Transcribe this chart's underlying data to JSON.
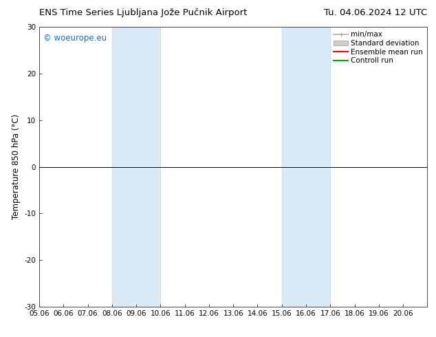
{
  "title_left": "ENS Time Series Ljubljana Jože Pučnik Airport",
  "title_right": "Tu. 04.06.2024 12 UTC",
  "ylabel": "Temperature 850 hPa (°C)",
  "ylim": [
    -30,
    30
  ],
  "yticks": [
    -30,
    -20,
    -10,
    0,
    10,
    20,
    30
  ],
  "xlim": [
    0,
    16
  ],
  "xtick_labels": [
    "05.06",
    "06.06",
    "07.06",
    "08.06",
    "09.06",
    "10.06",
    "11.06",
    "12.06",
    "13.06",
    "14.06",
    "15.06",
    "16.06",
    "17.06",
    "18.06",
    "19.06",
    "20.06"
  ],
  "shaded_bands": [
    {
      "xstart": 3.0,
      "xend": 5.0
    },
    {
      "xstart": 10.0,
      "xend": 12.0
    }
  ],
  "band_color": "#daeaf7",
  "band_edge_color": "#c0d8ee",
  "zero_line_color": "#000000",
  "legend_items": [
    {
      "label": "min/max",
      "color": "#aaaaaa",
      "lw": 1.2,
      "style": "-"
    },
    {
      "label": "Standard deviation",
      "color": "#cccccc",
      "lw": 6,
      "style": "-"
    },
    {
      "label": "Ensemble mean run",
      "color": "#ff0000",
      "lw": 1.5,
      "style": "-"
    },
    {
      "label": "Controll run",
      "color": "#00aa00",
      "lw": 1.5,
      "style": "-"
    }
  ],
  "watermark": "© woeurope.eu",
  "watermark_color": "#1a6fbd",
  "background_color": "#ffffff",
  "title_fontsize": 9.5,
  "axis_fontsize": 8.5,
  "tick_fontsize": 7.5,
  "legend_fontsize": 7.5
}
